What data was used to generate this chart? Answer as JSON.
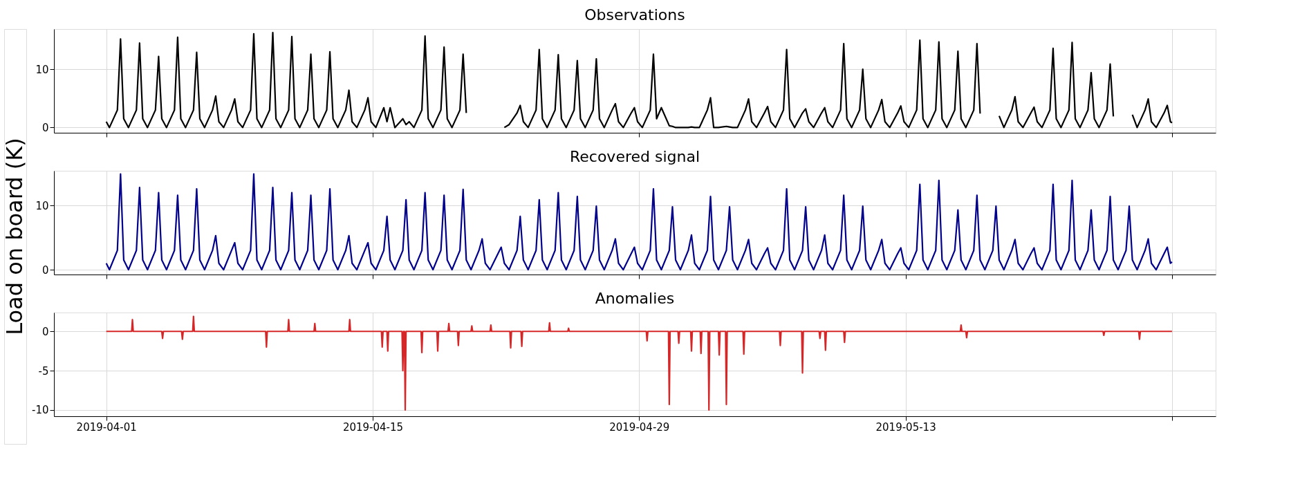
{
  "chart_data": [
    {
      "type": "line",
      "title": "Observations",
      "grid": true,
      "tick_labels": "y",
      "xlim": [
        "2019-03-29T06:00",
        "2019-05-29T07:00"
      ],
      "xticks": [
        "2019-04-01",
        "2019-04-15",
        "2019-04-29",
        "2019-05-13",
        {
          "value": "2019-05-27",
          "label": null
        }
      ],
      "ylim": [
        -0.9,
        16.9
      ],
      "yticks": [
        0,
        10
      ],
      "x": [
        "2019-04-01T00:00",
        "2019-04-01T04:00",
        "2019-04-01T14:00",
        "2019-04-01T18:00",
        "2019-04-01T22:00",
        "2019-04-02T04:00",
        "2019-04-02T14:00",
        "2019-04-02T18:00",
        "2019-04-02T22:00",
        "2019-04-03T04:00",
        "2019-04-03T14:00",
        "2019-04-03T18:00",
        "2019-04-03T22:00",
        "2019-04-04T04:00",
        "2019-04-04T14:00",
        "2019-04-04T18:00",
        "2019-04-04T22:00",
        "2019-04-05T04:00",
        "2019-04-05T14:00",
        "2019-04-05T18:00",
        "2019-04-05T22:00",
        "2019-04-06T04:00",
        "2019-04-06T14:00",
        "2019-04-06T18:00",
        "2019-04-06T22:00",
        "2019-04-07T04:00",
        "2019-04-07T14:00",
        "2019-04-07T18:00",
        "2019-04-07T22:00",
        "2019-04-08T04:00",
        "2019-04-08T14:00",
        "2019-04-08T18:00",
        "2019-04-08T22:00",
        "2019-04-09T04:00",
        "2019-04-09T14:00",
        "2019-04-09T18:00",
        "2019-04-09T22:00",
        "2019-04-10T04:00",
        "2019-04-10T14:00",
        "2019-04-10T18:00",
        "2019-04-10T22:00",
        "2019-04-11T04:00",
        "2019-04-11T14:00",
        "2019-04-11T18:00",
        "2019-04-11T22:00",
        "2019-04-12T04:00",
        "2019-04-12T14:00",
        "2019-04-12T18:00",
        "2019-04-12T22:00",
        "2019-04-13T04:00",
        "2019-04-13T14:00",
        "2019-04-13T18:00",
        "2019-04-13T22:00",
        "2019-04-14T04:00",
        "2019-04-14T14:00",
        "2019-04-14T18:00",
        "2019-04-14T22:00",
        "2019-04-15T04:00",
        "2019-04-15T14:00",
        "2019-04-15T18:00",
        "2019-04-15T22:00",
        "2019-04-16T04:00",
        "2019-04-16T14:00",
        "2019-04-16T18:00",
        "2019-04-16T22:00",
        "2019-04-17T04:00",
        "2019-04-17T14:00",
        "2019-04-17T18:00",
        "2019-04-17T22:00",
        "2019-04-18T04:00",
        "2019-04-18T14:00",
        "2019-04-18T18:00",
        "2019-04-18T22:00",
        "2019-04-19T04:00",
        "2019-04-19T14:00",
        "2019-04-19T18:00",
        "2019-04-19T22:00",
        "2019-04-20T04:00",
        "2019-04-20T14:00",
        "2019-04-20T18:00",
        "2019-04-20T22:00",
        "2019-04-21T04:00",
        "2019-04-21T14:00",
        "2019-04-21T18:00",
        "2019-04-21T22:00",
        "2019-04-22T04:00",
        "2019-04-22T14:00",
        "2019-04-22T18:00",
        "2019-04-22T22:00",
        "2019-04-23T04:00",
        "2019-04-23T14:00",
        "2019-04-23T18:00",
        "2019-04-23T22:00",
        "2019-04-24T04:00",
        "2019-04-24T14:00",
        "2019-04-24T18:00",
        "2019-04-24T22:00",
        "2019-04-25T04:00",
        "2019-04-25T14:00",
        "2019-04-25T18:00",
        "2019-04-25T22:00",
        "2019-04-26T04:00",
        "2019-04-26T14:00",
        "2019-04-26T18:00",
        "2019-04-26T22:00",
        "2019-04-27T04:00",
        "2019-04-27T14:00",
        "2019-04-27T18:00",
        "2019-04-27T22:00",
        "2019-04-28T04:00",
        "2019-04-28T14:00",
        "2019-04-28T18:00",
        "2019-04-28T22:00",
        "2019-04-29T04:00",
        "2019-04-29T14:00",
        "2019-04-29T18:00",
        "2019-04-29T22:00",
        "2019-04-30T04:00",
        "2019-04-30T14:00",
        "2019-04-30T18:00",
        "2019-04-30T22:00",
        "2019-05-01T04:00",
        "2019-05-01T14:00",
        "2019-05-01T18:00",
        "2019-05-01T22:00",
        "2019-05-02T04:00",
        "2019-05-02T14:00",
        "2019-05-02T18:00",
        "2019-05-02T22:00",
        "2019-05-03T04:00",
        "2019-05-03T14:00",
        "2019-05-03T18:00",
        "2019-05-03T22:00",
        "2019-05-04T04:00",
        "2019-05-04T14:00",
        "2019-05-04T18:00",
        "2019-05-04T22:00",
        "2019-05-05T04:00",
        "2019-05-05T14:00",
        "2019-05-05T18:00",
        "2019-05-05T22:00",
        "2019-05-06T04:00",
        "2019-05-06T14:00",
        "2019-05-06T18:00",
        "2019-05-06T22:00",
        "2019-05-07T04:00",
        "2019-05-07T14:00",
        "2019-05-07T18:00",
        "2019-05-07T22:00",
        "2019-05-08T04:00",
        "2019-05-08T14:00",
        "2019-05-08T18:00",
        "2019-05-08T22:00",
        "2019-05-09T04:00",
        "2019-05-09T14:00",
        "2019-05-09T18:00",
        "2019-05-09T22:00",
        "2019-05-10T04:00",
        "2019-05-10T14:00",
        "2019-05-10T18:00",
        "2019-05-10T22:00",
        "2019-05-11T04:00",
        "2019-05-11T14:00",
        "2019-05-11T18:00",
        "2019-05-11T22:00",
        "2019-05-12T04:00",
        "2019-05-12T14:00",
        "2019-05-12T18:00",
        "2019-05-12T22:00",
        "2019-05-13T04:00",
        "2019-05-13T14:00",
        "2019-05-13T18:00",
        "2019-05-13T22:00",
        "2019-05-14T04:00",
        "2019-05-14T14:00",
        "2019-05-14T18:00",
        "2019-05-14T22:00",
        "2019-05-15T04:00",
        "2019-05-15T14:00",
        "2019-05-15T18:00",
        "2019-05-15T22:00",
        "2019-05-16T04:00",
        "2019-05-16T14:00",
        "2019-05-16T18:00",
        "2019-05-16T22:00",
        "2019-05-17T04:00",
        "2019-05-17T14:00",
        "2019-05-17T18:00",
        "2019-05-17T22:00",
        "2019-05-18T04:00",
        "2019-05-18T14:00",
        "2019-05-18T18:00",
        "2019-05-18T22:00",
        "2019-05-19T04:00",
        "2019-05-19T14:00",
        "2019-05-19T18:00",
        "2019-05-19T22:00",
        "2019-05-20T04:00",
        "2019-05-20T14:00",
        "2019-05-20T18:00",
        "2019-05-20T22:00",
        "2019-05-21T04:00",
        "2019-05-21T14:00",
        "2019-05-21T18:00",
        "2019-05-21T22:00",
        "2019-05-22T04:00",
        "2019-05-22T14:00",
        "2019-05-22T18:00",
        "2019-05-22T22:00",
        "2019-05-23T04:00",
        "2019-05-23T14:00",
        "2019-05-23T18:00",
        "2019-05-23T22:00",
        "2019-05-24T04:00",
        "2019-05-24T14:00",
        "2019-05-24T18:00",
        "2019-05-24T22:00",
        "2019-05-25T04:00",
        "2019-05-25T14:00",
        "2019-05-25T18:00",
        "2019-05-25T22:00",
        "2019-05-26T04:00",
        "2019-05-26T14:00",
        "2019-05-26T18:00",
        "2019-05-26T22:00",
        "2019-05-27T00:00"
      ],
      "series": [
        {
          "color": "#000000",
          "values": [
            1.0,
            0,
            3,
            15.2,
            1.5,
            0,
            3,
            14.5,
            1.5,
            0,
            3,
            12.2,
            1.5,
            0,
            3,
            15.5,
            1.5,
            0,
            3,
            12.9,
            1.5,
            0,
            3,
            5.4,
            1.0,
            0,
            3,
            4.9,
            1.0,
            0,
            3,
            16.1,
            1.5,
            0,
            3,
            16.3,
            1.5,
            0,
            3,
            15.6,
            1.5,
            0,
            3,
            12.6,
            1.5,
            0,
            3,
            13.0,
            1.5,
            0,
            3,
            6.4,
            1.0,
            0,
            3,
            5.1,
            1.0,
            0,
            3.4,
            1.0,
            3.4,
            0,
            1.5,
            0.5,
            1.0,
            0,
            3,
            15.7,
            1.5,
            0,
            3,
            13.8,
            1.5,
            0,
            3,
            12.6,
            2.5,
            null,
            null,
            null,
            null,
            null,
            null,
            null,
            0,
            0.5,
            2.5,
            3.8,
            1.0,
            0,
            3,
            13.4,
            1.5,
            0,
            3,
            12.5,
            1.5,
            0,
            3,
            11.5,
            1.5,
            0,
            3,
            11.8,
            1.5,
            0,
            3,
            4.1,
            1.0,
            0,
            2.5,
            3.4,
            1.0,
            0,
            3,
            12.6,
            1.5,
            3.4,
            0.3,
            0.2,
            0,
            0,
            0,
            0.1,
            0,
            0,
            3,
            5.1,
            0,
            0,
            0.2,
            0.1,
            0,
            0,
            3,
            4.9,
            1.0,
            0,
            2.5,
            3.6,
            1.0,
            0,
            3,
            13.4,
            1.5,
            0,
            2.5,
            3.2,
            1.0,
            0,
            2.5,
            3.4,
            1.0,
            0,
            3,
            14.4,
            1.5,
            0,
            3,
            10.0,
            1.5,
            0,
            3,
            4.8,
            1.0,
            0,
            2.5,
            3.7,
            1.0,
            0,
            3,
            15.0,
            1.5,
            0,
            3,
            14.7,
            1.5,
            0,
            3,
            13.1,
            1.5,
            0,
            3,
            14.4,
            2.4,
            null,
            null,
            null,
            2.0,
            0,
            3,
            5.3,
            1.0,
            0,
            2.5,
            3.5,
            1.0,
            0,
            3,
            13.6,
            1.5,
            0,
            3,
            14.6,
            1.5,
            0,
            3,
            9.4,
            1.5,
            0,
            3,
            10.9,
            1.9,
            null,
            null,
            null,
            2.2,
            0,
            3,
            4.9,
            1.0,
            0,
            2.5,
            3.8,
            1.0,
            0.8
          ]
        }
      ]
    },
    {
      "type": "line",
      "title": "Recovered signal",
      "ylabel": "Load on board (K)",
      "grid": true,
      "tick_labels": "y",
      "xlim": [
        "2019-03-29T06:00",
        "2019-05-29T07:00"
      ],
      "xticks": [
        "2019-04-01",
        "2019-04-15",
        "2019-04-29",
        "2019-05-13",
        {
          "value": "2019-05-27",
          "label": null
        }
      ],
      "ylim": [
        -0.75,
        15.4
      ],
      "yticks": [
        0,
        10
      ],
      "x": [
        "2019-04-01T00:00",
        "2019-04-01T04:00",
        "2019-04-01T14:00",
        "2019-04-01T18:00",
        "2019-04-01T22:00",
        "2019-04-02T04:00",
        "2019-04-02T14:00",
        "2019-04-02T18:00",
        "2019-04-02T22:00",
        "2019-04-03T04:00",
        "2019-04-03T14:00",
        "2019-04-03T18:00",
        "2019-04-03T22:00",
        "2019-04-04T04:00",
        "2019-04-04T14:00",
        "2019-04-04T18:00",
        "2019-04-04T22:00",
        "2019-04-05T04:00",
        "2019-04-05T14:00",
        "2019-04-05T18:00",
        "2019-04-05T22:00",
        "2019-04-06T04:00",
        "2019-04-06T14:00",
        "2019-04-06T18:00",
        "2019-04-06T22:00",
        "2019-04-07T04:00",
        "2019-04-07T14:00",
        "2019-04-07T18:00",
        "2019-04-07T22:00",
        "2019-04-08T04:00",
        "2019-04-08T14:00",
        "2019-04-08T18:00",
        "2019-04-08T22:00",
        "2019-04-09T04:00",
        "2019-04-09T14:00",
        "2019-04-09T18:00",
        "2019-04-09T22:00",
        "2019-04-10T04:00",
        "2019-04-10T14:00",
        "2019-04-10T18:00",
        "2019-04-10T22:00",
        "2019-04-11T04:00",
        "2019-04-11T14:00",
        "2019-04-11T18:00",
        "2019-04-11T22:00",
        "2019-04-12T04:00",
        "2019-04-12T14:00",
        "2019-04-12T18:00",
        "2019-04-12T22:00",
        "2019-04-13T04:00",
        "2019-04-13T14:00",
        "2019-04-13T18:00",
        "2019-04-13T22:00",
        "2019-04-14T04:00",
        "2019-04-14T14:00",
        "2019-04-14T18:00",
        "2019-04-14T22:00",
        "2019-04-15T04:00",
        "2019-04-15T14:00",
        "2019-04-15T18:00",
        "2019-04-15T22:00",
        "2019-04-16T04:00",
        "2019-04-16T14:00",
        "2019-04-16T18:00",
        "2019-04-16T22:00",
        "2019-04-17T04:00",
        "2019-04-17T14:00",
        "2019-04-17T18:00",
        "2019-04-17T22:00",
        "2019-04-18T04:00",
        "2019-04-18T14:00",
        "2019-04-18T18:00",
        "2019-04-18T22:00",
        "2019-04-19T04:00",
        "2019-04-19T14:00",
        "2019-04-19T18:00",
        "2019-04-19T22:00",
        "2019-04-20T04:00",
        "2019-04-20T14:00",
        "2019-04-20T18:00",
        "2019-04-20T22:00",
        "2019-04-21T04:00",
        "2019-04-21T14:00",
        "2019-04-21T18:00",
        "2019-04-21T22:00",
        "2019-04-22T04:00",
        "2019-04-22T14:00",
        "2019-04-22T18:00",
        "2019-04-22T22:00",
        "2019-04-23T04:00",
        "2019-04-23T14:00",
        "2019-04-23T18:00",
        "2019-04-23T22:00",
        "2019-04-24T04:00",
        "2019-04-24T14:00",
        "2019-04-24T18:00",
        "2019-04-24T22:00",
        "2019-04-25T04:00",
        "2019-04-25T14:00",
        "2019-04-25T18:00",
        "2019-04-25T22:00",
        "2019-04-26T04:00",
        "2019-04-26T14:00",
        "2019-04-26T18:00",
        "2019-04-26T22:00",
        "2019-04-27T04:00",
        "2019-04-27T14:00",
        "2019-04-27T18:00",
        "2019-04-27T22:00",
        "2019-04-28T04:00",
        "2019-04-28T14:00",
        "2019-04-28T18:00",
        "2019-04-28T22:00",
        "2019-04-29T04:00",
        "2019-04-29T14:00",
        "2019-04-29T18:00",
        "2019-04-29T22:00",
        "2019-04-30T04:00",
        "2019-04-30T14:00",
        "2019-04-30T18:00",
        "2019-04-30T22:00",
        "2019-05-01T04:00",
        "2019-05-01T14:00",
        "2019-05-01T18:00",
        "2019-05-01T22:00",
        "2019-05-02T04:00",
        "2019-05-02T14:00",
        "2019-05-02T18:00",
        "2019-05-02T22:00",
        "2019-05-03T04:00",
        "2019-05-03T14:00",
        "2019-05-03T18:00",
        "2019-05-03T22:00",
        "2019-05-04T04:00",
        "2019-05-04T14:00",
        "2019-05-04T18:00",
        "2019-05-04T22:00",
        "2019-05-05T04:00",
        "2019-05-05T14:00",
        "2019-05-05T18:00",
        "2019-05-05T22:00",
        "2019-05-06T04:00",
        "2019-05-06T14:00",
        "2019-05-06T18:00",
        "2019-05-06T22:00",
        "2019-05-07T04:00",
        "2019-05-07T14:00",
        "2019-05-07T18:00",
        "2019-05-07T22:00",
        "2019-05-08T04:00",
        "2019-05-08T14:00",
        "2019-05-08T18:00",
        "2019-05-08T22:00",
        "2019-05-09T04:00",
        "2019-05-09T14:00",
        "2019-05-09T18:00",
        "2019-05-09T22:00",
        "2019-05-10T04:00",
        "2019-05-10T14:00",
        "2019-05-10T18:00",
        "2019-05-10T22:00",
        "2019-05-11T04:00",
        "2019-05-11T14:00",
        "2019-05-11T18:00",
        "2019-05-11T22:00",
        "2019-05-12T04:00",
        "2019-05-12T14:00",
        "2019-05-12T18:00",
        "2019-05-12T22:00",
        "2019-05-13T04:00",
        "2019-05-13T14:00",
        "2019-05-13T18:00",
        "2019-05-13T22:00",
        "2019-05-14T04:00",
        "2019-05-14T14:00",
        "2019-05-14T18:00",
        "2019-05-14T22:00",
        "2019-05-15T04:00",
        "2019-05-15T14:00",
        "2019-05-15T18:00",
        "2019-05-15T22:00",
        "2019-05-16T04:00",
        "2019-05-16T14:00",
        "2019-05-16T18:00",
        "2019-05-16T22:00",
        "2019-05-17T04:00",
        "2019-05-17T14:00",
        "2019-05-17T18:00",
        "2019-05-17T22:00",
        "2019-05-18T04:00",
        "2019-05-18T14:00",
        "2019-05-18T18:00",
        "2019-05-18T22:00",
        "2019-05-19T04:00",
        "2019-05-19T14:00",
        "2019-05-19T18:00",
        "2019-05-19T22:00",
        "2019-05-20T04:00",
        "2019-05-20T14:00",
        "2019-05-20T18:00",
        "2019-05-20T22:00",
        "2019-05-21T04:00",
        "2019-05-21T14:00",
        "2019-05-21T18:00",
        "2019-05-21T22:00",
        "2019-05-22T04:00",
        "2019-05-22T14:00",
        "2019-05-22T18:00",
        "2019-05-22T22:00",
        "2019-05-23T04:00",
        "2019-05-23T14:00",
        "2019-05-23T18:00",
        "2019-05-23T22:00",
        "2019-05-24T04:00",
        "2019-05-24T14:00",
        "2019-05-24T18:00",
        "2019-05-24T22:00",
        "2019-05-25T04:00",
        "2019-05-25T14:00",
        "2019-05-25T18:00",
        "2019-05-25T22:00",
        "2019-05-26T04:00",
        "2019-05-26T14:00",
        "2019-05-26T18:00",
        "2019-05-26T22:00",
        "2019-05-27T00:00"
      ],
      "series": [
        {
          "color": "#00008b",
          "values": [
            1.0,
            0,
            3,
            14.9,
            1.5,
            0,
            3,
            12.8,
            1.5,
            0,
            3,
            12.0,
            1.5,
            0,
            3,
            11.6,
            1.5,
            0,
            3,
            12.6,
            1.5,
            0,
            3,
            5.3,
            1.0,
            0,
            3,
            4.2,
            1.0,
            0,
            3,
            14.9,
            1.5,
            0,
            3,
            12.8,
            1.5,
            0,
            3,
            12.0,
            1.5,
            0,
            3,
            11.6,
            1.5,
            0,
            3,
            12.6,
            1.5,
            0,
            3,
            5.3,
            1.0,
            0,
            3,
            4.2,
            1.0,
            0,
            3,
            8.3,
            1.5,
            0,
            3,
            10.9,
            1.5,
            0,
            3,
            12.0,
            1.5,
            0,
            3,
            11.6,
            1.5,
            0,
            3,
            12.5,
            1.5,
            0,
            3,
            4.8,
            1.0,
            0,
            2.5,
            3.5,
            1.0,
            0,
            3,
            8.3,
            1.5,
            0,
            3,
            10.9,
            1.5,
            0,
            3,
            12.0,
            1.5,
            0,
            3,
            11.4,
            1.5,
            0,
            3,
            9.9,
            1.5,
            0,
            3,
            4.8,
            1.0,
            0,
            2.5,
            3.5,
            1.0,
            0,
            3,
            12.6,
            1.5,
            0,
            3,
            9.8,
            1.5,
            0,
            3,
            5.4,
            1.0,
            0,
            3,
            11.4,
            1.5,
            0,
            3,
            9.8,
            1.5,
            0,
            3,
            4.7,
            1.0,
            0,
            2.5,
            3.4,
            1.0,
            0,
            3,
            12.6,
            1.5,
            0,
            3,
            9.8,
            1.5,
            0,
            3,
            5.4,
            1.0,
            0,
            3,
            11.6,
            1.5,
            0,
            3,
            9.9,
            1.5,
            0,
            3,
            4.7,
            1.0,
            0,
            2.5,
            3.4,
            1.0,
            0,
            3,
            13.3,
            1.5,
            0,
            3,
            13.9,
            1.5,
            0,
            3,
            9.3,
            1.5,
            0,
            3,
            11.6,
            1.5,
            0,
            3,
            9.9,
            1.5,
            0,
            3,
            4.7,
            1.0,
            0,
            2.5,
            3.4,
            1.0,
            0,
            3,
            13.3,
            1.5,
            0,
            3,
            13.9,
            1.5,
            0,
            3,
            9.3,
            1.5,
            0,
            3,
            11.4,
            1.5,
            0,
            3,
            9.9,
            1.5,
            0,
            3,
            4.8,
            1.0,
            0,
            2.5,
            3.5,
            1.0,
            1.2
          ]
        }
      ]
    },
    {
      "type": "line",
      "title": "Anomalies",
      "grid": true,
      "xlim": [
        "2019-03-29T06:00",
        "2019-05-29T07:00"
      ],
      "xticks": [
        "2019-04-01",
        "2019-04-15",
        "2019-04-29",
        "2019-05-13",
        {
          "value": "2019-05-27",
          "label": null
        }
      ],
      "ylim": [
        -10.8,
        2.4
      ],
      "yticks": [
        -10,
        -5,
        0
      ],
      "series": [
        {
          "color": "#d62728",
          "x": [
            "2019-04-01T00:00",
            "2019-04-02T08:00",
            "2019-04-02T09:00",
            "2019-04-02T10:00",
            "2019-04-03T22:00",
            "2019-04-03T23:00",
            "2019-04-04T00:00",
            "2019-04-04T23:00",
            "2019-04-05T00:00",
            "2019-04-05T01:00",
            "2019-04-05T13:00",
            "2019-04-05T14:00",
            "2019-04-05T15:00",
            "2019-04-09T09:00",
            "2019-04-09T10:00",
            "2019-04-09T11:00",
            "2019-04-10T13:00",
            "2019-04-10T14:00",
            "2019-04-10T15:00",
            "2019-04-11T22:00",
            "2019-04-11T23:00",
            "2019-04-12T00:00",
            "2019-04-13T18:00",
            "2019-04-13T19:00",
            "2019-04-13T20:00",
            "2019-04-15T11:00",
            "2019-04-15T12:00",
            "2019-04-15T13:00",
            "2019-04-15T18:00",
            "2019-04-15T19:00",
            "2019-04-15T20:00",
            "2019-04-16T13:00",
            "2019-04-16T14:00",
            "2019-04-16T15:00",
            "2019-04-16T16:00",
            "2019-04-16T17:00",
            "2019-04-16T18:00",
            "2019-04-17T13:00",
            "2019-04-17T14:00",
            "2019-04-17T15:00",
            "2019-04-18T09:00",
            "2019-04-18T10:00",
            "2019-04-18T11:00",
            "2019-04-18T23:00",
            "2019-04-19T00:00",
            "2019-04-19T01:00",
            "2019-04-19T11:00",
            "2019-04-19T12:00",
            "2019-04-19T13:00",
            "2019-04-20T04:00",
            "2019-04-20T05:00",
            "2019-04-20T06:00",
            "2019-04-21T04:00",
            "2019-04-21T05:00",
            "2019-04-21T06:00",
            "2019-04-22T05:00",
            "2019-04-22T06:00",
            "2019-04-22T07:00",
            "2019-04-22T19:00",
            "2019-04-22T20:00",
            "2019-04-22T21:00",
            "2019-04-24T06:00",
            "2019-04-24T07:00",
            "2019-04-24T08:00",
            "2019-04-25T06:00",
            "2019-04-25T07:00",
            "2019-04-25T08:00",
            "2019-04-29T09:00",
            "2019-04-29T10:00",
            "2019-04-29T11:00",
            "2019-04-30T13:00",
            "2019-04-30T14:00",
            "2019-04-30T15:00",
            "2019-05-01T01:00",
            "2019-05-01T02:00",
            "2019-05-01T03:00",
            "2019-05-01T17:00",
            "2019-05-01T18:00",
            "2019-05-01T19:00",
            "2019-05-02T05:00",
            "2019-05-02T06:00",
            "2019-05-02T07:00",
            "2019-05-02T15:00",
            "2019-05-02T16:00",
            "2019-05-02T17:00",
            "2019-05-03T04:00",
            "2019-05-03T05:00",
            "2019-05-03T06:00",
            "2019-05-03T13:00",
            "2019-05-03T14:00",
            "2019-05-03T15:00",
            "2019-05-04T11:00",
            "2019-05-04T12:00",
            "2019-05-04T13:00",
            "2019-05-06T09:00",
            "2019-05-06T10:00",
            "2019-05-06T11:00",
            "2019-05-07T13:00",
            "2019-05-07T14:00",
            "2019-05-07T15:00",
            "2019-05-08T11:00",
            "2019-05-08T12:00",
            "2019-05-08T13:00",
            "2019-05-08T18:00",
            "2019-05-08T19:00",
            "2019-05-08T20:00",
            "2019-05-09T18:00",
            "2019-05-09T19:00",
            "2019-05-09T20:00",
            "2019-05-15T21:00",
            "2019-05-15T22:00",
            "2019-05-15T23:00",
            "2019-05-16T04:00",
            "2019-05-16T05:00",
            "2019-05-16T06:00",
            "2019-05-23T09:00",
            "2019-05-23T10:00",
            "2019-05-23T11:00",
            "2019-05-25T06:00",
            "2019-05-25T07:00",
            "2019-05-25T08:00",
            "2019-05-27T00:00"
          ],
          "values": [
            0,
            0,
            1.5,
            0,
            0,
            -0.9,
            0,
            0,
            -1.0,
            0,
            0,
            1.9,
            0,
            0,
            -2.0,
            0,
            0,
            1.5,
            0,
            0,
            1.0,
            0,
            0,
            1.5,
            0,
            0,
            -2.0,
            0,
            0,
            -2.5,
            0,
            0,
            -5.0,
            0,
            0,
            -10.0,
            0,
            0,
            -2.7,
            0,
            0,
            -2.5,
            0,
            0,
            1.0,
            0,
            0,
            -1.8,
            0,
            0,
            0.7,
            0,
            0,
            0.8,
            0,
            0,
            -2.1,
            0,
            0,
            -1.9,
            0,
            0,
            1.1,
            0,
            0,
            0.4,
            0,
            0,
            -1.2,
            0,
            0,
            -9.3,
            0,
            0,
            -1.5,
            0,
            0,
            -2.5,
            0,
            0,
            -2.8,
            0,
            0,
            -10.0,
            0,
            0,
            -3.0,
            0,
            0,
            -9.3,
            0,
            0,
            -2.9,
            0,
            0,
            -1.8,
            0,
            0,
            -5.3,
            0,
            0,
            -0.9,
            0,
            0,
            -2.4,
            0,
            0,
            -1.4,
            0,
            0,
            0.8,
            0,
            0,
            -0.8,
            0,
            0,
            -0.5,
            0,
            0,
            -1.0,
            0,
            0
          ]
        }
      ]
    }
  ]
}
